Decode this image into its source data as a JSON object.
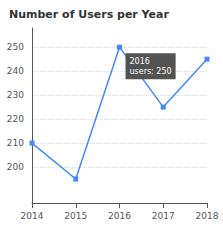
{
  "chart_data": {
    "type": "line",
    "title": "Number of Users per Year",
    "x": [
      2014,
      2015,
      2016,
      2017,
      2018
    ],
    "values": [
      210,
      195,
      250,
      225,
      245
    ],
    "color": "#4488ff",
    "marker": "square",
    "line_style": "solid",
    "xlim": [
      2014,
      2018
    ],
    "xticks": [
      2014,
      2015,
      2016,
      2017,
      2018
    ],
    "ylim": [
      185,
      258
    ],
    "yticks": [
      200,
      210,
      220,
      230,
      240,
      250
    ],
    "grid": true,
    "annotations": [
      {
        "x": 2016,
        "y": 250,
        "text": "2016\nusers: 250"
      }
    ]
  }
}
